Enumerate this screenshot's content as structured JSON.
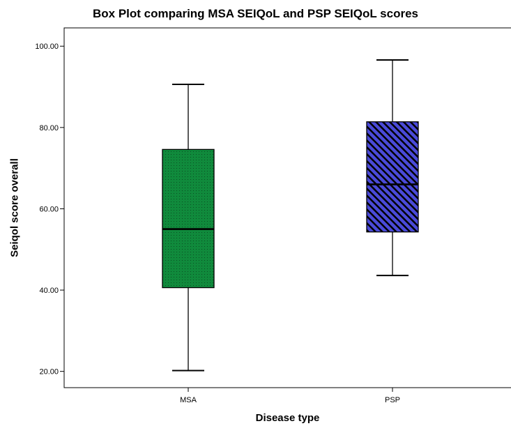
{
  "chart_data": {
    "type": "box",
    "title": "Box Plot comparing MSA SEIQoL and PSP SEIQoL scores",
    "xlabel": "Disease type",
    "ylabel": "Seiqol score overall",
    "ylim": [
      16.0,
      104.5
    ],
    "yticks": [
      "20.00",
      "40.00",
      "60.00",
      "80.00",
      "100.00"
    ],
    "grid": false,
    "categories": [
      "MSA",
      "PSP"
    ],
    "boxes": [
      {
        "category": "MSA",
        "min": 20.2,
        "q1": 40.6,
        "median": 55.0,
        "q3": 74.6,
        "max": 90.6,
        "color": "#108a3c",
        "pattern": "dots"
      },
      {
        "category": "PSP",
        "min": 43.6,
        "q1": 54.3,
        "median": 66.0,
        "q3": 81.4,
        "max": 96.6,
        "color": "#4a4ad8",
        "pattern": "diagonal-stripes"
      }
    ]
  }
}
